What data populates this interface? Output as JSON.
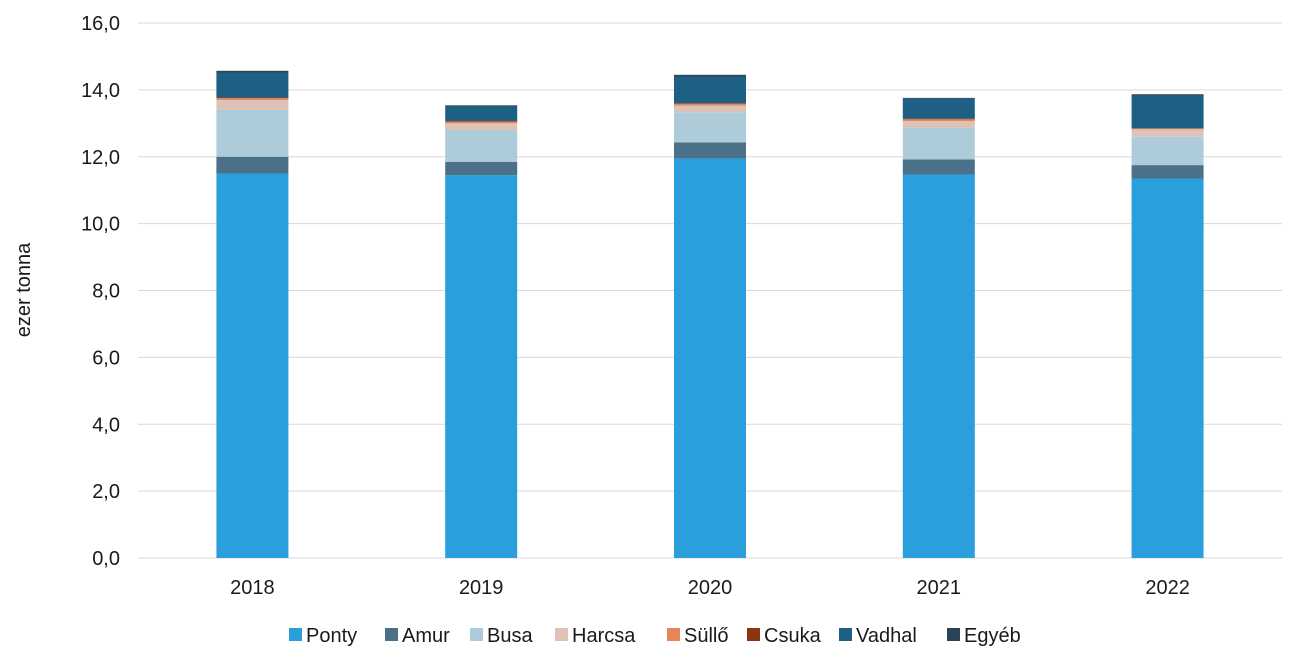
{
  "chart_data": {
    "type": "bar",
    "stacked": true,
    "ylabel": "ezer tonna",
    "xlabel": "",
    "ylim": [
      0,
      16
    ],
    "yticks": [
      "0,0",
      "2,0",
      "4,0",
      "6,0",
      "8,0",
      "10,0",
      "12,0",
      "14,0",
      "16,0"
    ],
    "grid": true,
    "legend_position": "bottom",
    "categories": [
      "2018",
      "2019",
      "2020",
      "2021",
      "2022"
    ],
    "series": [
      {
        "name": "Ponty",
        "color": "#2a9fdb",
        "values": [
          11.5,
          11.45,
          11.95,
          11.47,
          11.35
        ]
      },
      {
        "name": "Amur",
        "color": "#4a7189",
        "values": [
          0.5,
          0.4,
          0.48,
          0.45,
          0.4
        ]
      },
      {
        "name": "Busa",
        "color": "#adcbd8",
        "values": [
          1.4,
          0.95,
          0.9,
          0.95,
          0.85
        ]
      },
      {
        "name": "Harcsa",
        "color": "#dec2b6",
        "values": [
          0.3,
          0.2,
          0.2,
          0.2,
          0.22
        ]
      },
      {
        "name": "Süllő",
        "color": "#e5855b",
        "values": [
          0.05,
          0.05,
          0.05,
          0.05,
          0.02
        ]
      },
      {
        "name": "Csuka",
        "color": "#8b3613",
        "values": [
          0.02,
          0.02,
          0.02,
          0.02,
          0.01
        ]
      },
      {
        "name": "Vadhal",
        "color": "#1e5f84",
        "values": [
          0.75,
          0.45,
          0.8,
          0.6,
          0.97
        ]
      },
      {
        "name": "Egyéb",
        "color": "#294455",
        "values": [
          0.05,
          0.02,
          0.05,
          0.02,
          0.05
        ]
      }
    ]
  }
}
